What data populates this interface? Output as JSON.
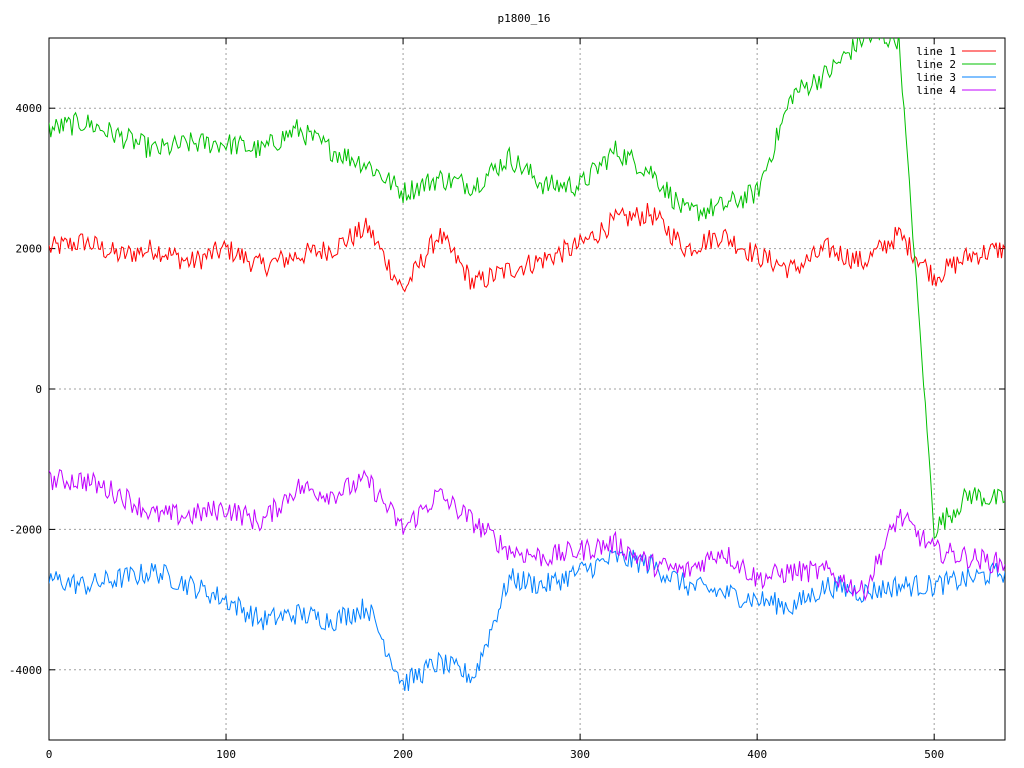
{
  "chart_data": {
    "type": "line",
    "title": "p1800_16",
    "xlabel": "",
    "ylabel": "",
    "xlim": [
      0,
      540
    ],
    "ylim": [
      -5000,
      5000
    ],
    "x_ticks": [
      "0",
      "100",
      "200",
      "300",
      "400",
      "500"
    ],
    "y_ticks": [
      "-4000",
      "-2000",
      "0",
      "2000",
      "4000"
    ],
    "grid": true,
    "legend_position": "top-right",
    "x_step": 20,
    "series": [
      {
        "name": "line 1",
        "color": "#ff0000",
        "x": [
          0,
          20,
          40,
          60,
          80,
          100,
          120,
          140,
          160,
          180,
          200,
          220,
          240,
          260,
          280,
          300,
          320,
          340,
          360,
          380,
          400,
          420,
          440,
          460,
          480,
          500,
          520,
          540
        ],
        "values": [
          2000,
          2100,
          1900,
          2000,
          1800,
          2000,
          1750,
          1900,
          2000,
          2300,
          1400,
          2200,
          1500,
          1700,
          1850,
          2050,
          2400,
          2500,
          2000,
          2200,
          1900,
          1700,
          2000,
          1800,
          2200,
          1600,
          1900,
          2000
        ]
      },
      {
        "name": "line 2",
        "color": "#00c000",
        "x": [
          0,
          20,
          40,
          60,
          80,
          100,
          120,
          140,
          160,
          180,
          200,
          220,
          240,
          260,
          280,
          300,
          320,
          340,
          360,
          380,
          400,
          420,
          440,
          460,
          480,
          500,
          520,
          540
        ],
        "values": [
          3700,
          3800,
          3600,
          3400,
          3500,
          3500,
          3400,
          3700,
          3400,
          3200,
          2800,
          3000,
          2900,
          3300,
          2900,
          2900,
          3400,
          3100,
          2500,
          2600,
          2800,
          4200,
          4500,
          5000,
          5000,
          -2000,
          -1500,
          -1600
        ]
      },
      {
        "name": "line 3",
        "color": "#0080ff",
        "x": [
          0,
          20,
          40,
          60,
          80,
          100,
          120,
          140,
          160,
          180,
          200,
          220,
          240,
          260,
          280,
          300,
          320,
          340,
          360,
          380,
          400,
          420,
          440,
          460,
          480,
          500,
          520,
          540
        ],
        "values": [
          -2700,
          -2800,
          -2700,
          -2600,
          -2800,
          -3000,
          -3300,
          -3200,
          -3300,
          -3100,
          -4200,
          -3900,
          -4100,
          -2700,
          -2800,
          -2600,
          -2400,
          -2500,
          -2800,
          -2900,
          -3000,
          -3100,
          -2800,
          -2900,
          -2800,
          -2800,
          -2700,
          -2600
        ]
      },
      {
        "name": "line 4",
        "color": "#c000ff",
        "x": [
          0,
          20,
          40,
          60,
          80,
          100,
          120,
          140,
          160,
          180,
          200,
          220,
          240,
          260,
          280,
          300,
          320,
          340,
          360,
          380,
          400,
          420,
          440,
          460,
          480,
          500,
          520,
          540
        ],
        "values": [
          -1300,
          -1300,
          -1500,
          -1800,
          -1800,
          -1700,
          -1900,
          -1400,
          -1500,
          -1300,
          -2000,
          -1500,
          -1900,
          -2300,
          -2400,
          -2300,
          -2200,
          -2500,
          -2600,
          -2300,
          -2700,
          -2600,
          -2600,
          -2900,
          -1800,
          -2300,
          -2400,
          -2500
        ]
      }
    ]
  }
}
